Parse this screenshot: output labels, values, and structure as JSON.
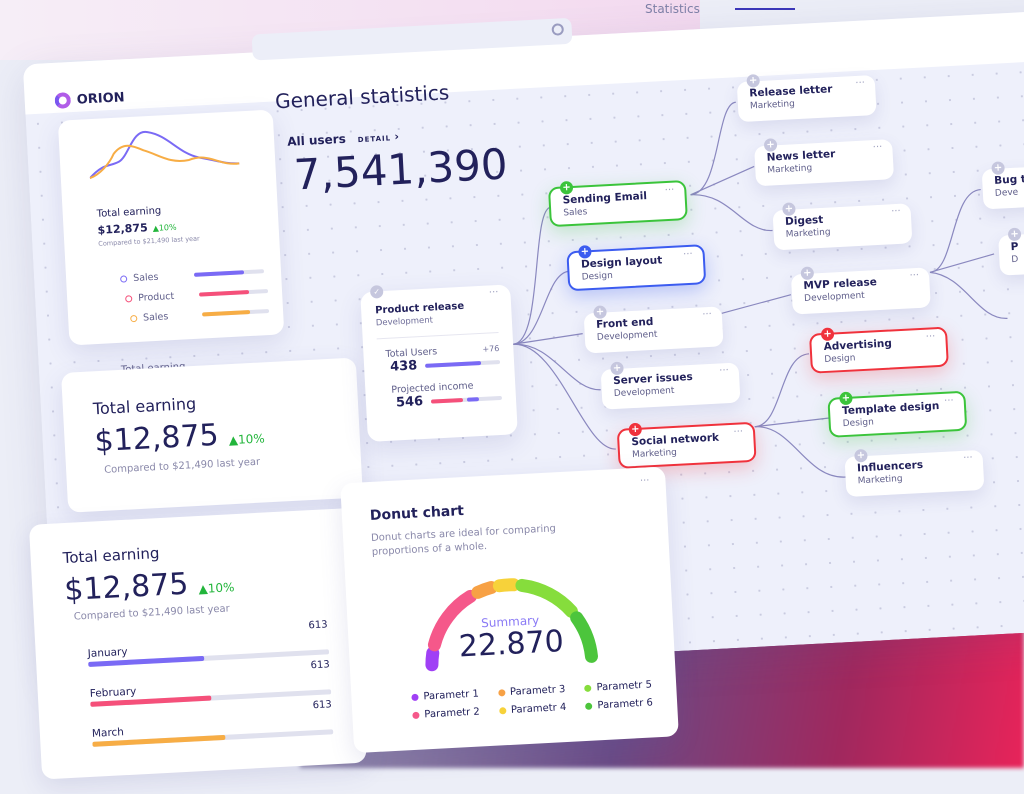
{
  "header": {
    "brand": "ORION",
    "tab": "Statistics",
    "search_placeholder": ""
  },
  "main": {
    "title": "General statistics",
    "all_users_label": "All users",
    "detail_link": "DETAIL",
    "detail_chevron": "›",
    "all_users_value": "7,541,390"
  },
  "mini_card": {
    "title": "Total earning",
    "value": "$12,875",
    "change": "▲10%",
    "compare": "Compared to $21,490 last year",
    "rows": [
      {
        "label": "Sales",
        "color": "#7a6af5",
        "fill": 0.72
      },
      {
        "label": "Product",
        "color": "#f5507a",
        "fill": 0.72
      },
      {
        "label": "Sales",
        "color": "#f7ad45",
        "fill": 0.72
      }
    ],
    "chart_series_colors": [
      "#7a6af5",
      "#f7ad45"
    ],
    "faded_title": "Total earning",
    "faded_value": "$12,875"
  },
  "earning_card": {
    "title": "Total earning",
    "value": "$12,875",
    "change": "▲10%",
    "compare": "Compared to $21,490 last year"
  },
  "monthly_card": {
    "title": "Total earning",
    "value": "$12,875",
    "change": "▲10%",
    "compare": "Compared to $21,490 last year",
    "rows": [
      {
        "label": "January",
        "value": "613",
        "color": "#7a6af5",
        "fill": 0.48
      },
      {
        "label": "February",
        "value": "613",
        "color": "#f5507a",
        "fill": 0.5
      },
      {
        "label": "March",
        "value": "613",
        "color": "#f7ad45",
        "fill": 0.55
      }
    ]
  },
  "product_card": {
    "title": "Product release",
    "subtitle": "Development",
    "users_label": "Total Users",
    "users_value": "438",
    "users_delta": "+76",
    "users_fill": 0.75,
    "income_label": "Projected income",
    "income_value": "546",
    "more": "···"
  },
  "nodes": [
    {
      "title": "Sending Email",
      "sub": "Sales",
      "status": "green"
    },
    {
      "title": "Design layout",
      "sub": "Design",
      "status": "blue"
    },
    {
      "title": "Front end",
      "sub": "Development",
      "status": "default"
    },
    {
      "title": "Server issues",
      "sub": "Development",
      "status": "default"
    },
    {
      "title": "Social network",
      "sub": "Marketing",
      "status": "red"
    },
    {
      "title": "Release letter",
      "sub": "Marketing",
      "status": "default"
    },
    {
      "title": "News letter",
      "sub": "Marketing",
      "status": "default"
    },
    {
      "title": "Digest",
      "sub": "Marketing",
      "status": "default"
    },
    {
      "title": "MVP release",
      "sub": "Development",
      "status": "default"
    },
    {
      "title": "Advertising",
      "sub": "Design",
      "status": "red"
    },
    {
      "title": "Template design",
      "sub": "Design",
      "status": "green"
    },
    {
      "title": "Influencers",
      "sub": "Marketing",
      "status": "default"
    },
    {
      "title": "Bug t",
      "sub": "Deve",
      "status": "default"
    },
    {
      "title": "P",
      "sub": "D",
      "status": "default"
    }
  ],
  "node_more": "···",
  "node_plus": "+",
  "chart_data": {
    "type": "pie",
    "variant": "semi-donut gauge",
    "title": "Donut chart",
    "subtitle": "Donut charts are ideal for comparing proportions of a whole.",
    "center_label": "Summary",
    "center_value": "22.870",
    "more": "···",
    "categories": [
      "Parametr 1",
      "Parametr 2",
      "Parametr 3",
      "Parametr 4",
      "Parametr 5",
      "Parametr 6"
    ],
    "values": [
      8,
      28,
      9,
      9,
      26,
      20
    ],
    "colors": [
      "#a040f5",
      "#f5588a",
      "#f7a145",
      "#f7d23a",
      "#86dd3c",
      "#4cc53c"
    ]
  }
}
